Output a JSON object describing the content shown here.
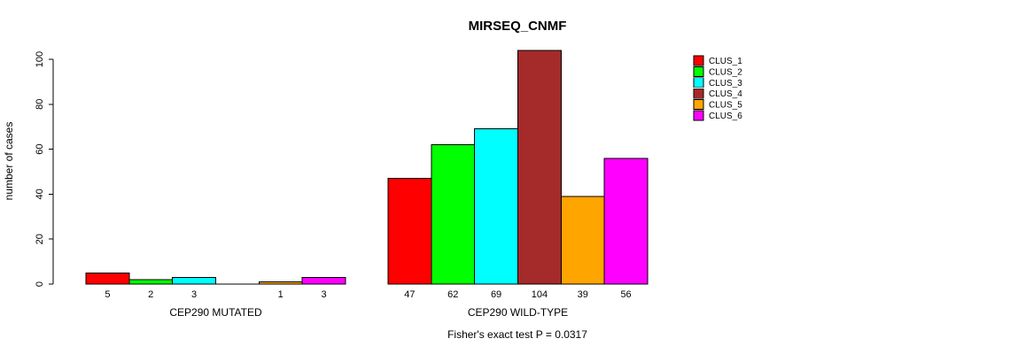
{
  "window": {
    "background": "#ffffff"
  },
  "chart_data": {
    "type": "bar",
    "title": "MIRSEQ_CNMF",
    "xlabel": "",
    "ylabel": "number of cases",
    "ylim": [
      0,
      100
    ],
    "yticks": [
      0,
      20,
      40,
      60,
      80,
      100
    ],
    "grid": false,
    "legend_position": "right",
    "series": [
      {
        "name": "CLUS_1",
        "color": "#FF0000"
      },
      {
        "name": "CLUS_2",
        "color": "#00FF00"
      },
      {
        "name": "CLUS_3",
        "color": "#00FFFF"
      },
      {
        "name": "CLUS_4",
        "color": "#A52A2A"
      },
      {
        "name": "CLUS_5",
        "color": "#FFA500"
      },
      {
        "name": "CLUS_6",
        "color": "#FF00FF"
      }
    ],
    "groups": [
      {
        "label": "CEP290 MUTATED",
        "values": [
          5,
          2,
          3,
          0,
          1,
          3
        ],
        "bar_labels": [
          "5",
          "2",
          "3",
          "",
          "1",
          "3"
        ]
      },
      {
        "label": "CEP290 WILD-TYPE",
        "values": [
          47,
          62,
          69,
          104,
          39,
          56
        ],
        "bar_labels": [
          "47",
          "62",
          "69",
          "104",
          "39",
          "56"
        ]
      }
    ],
    "annotation": "Fisher's exact test P = 0.0317",
    "bar_border_color": "#000000",
    "axis_color": "#000000"
  }
}
